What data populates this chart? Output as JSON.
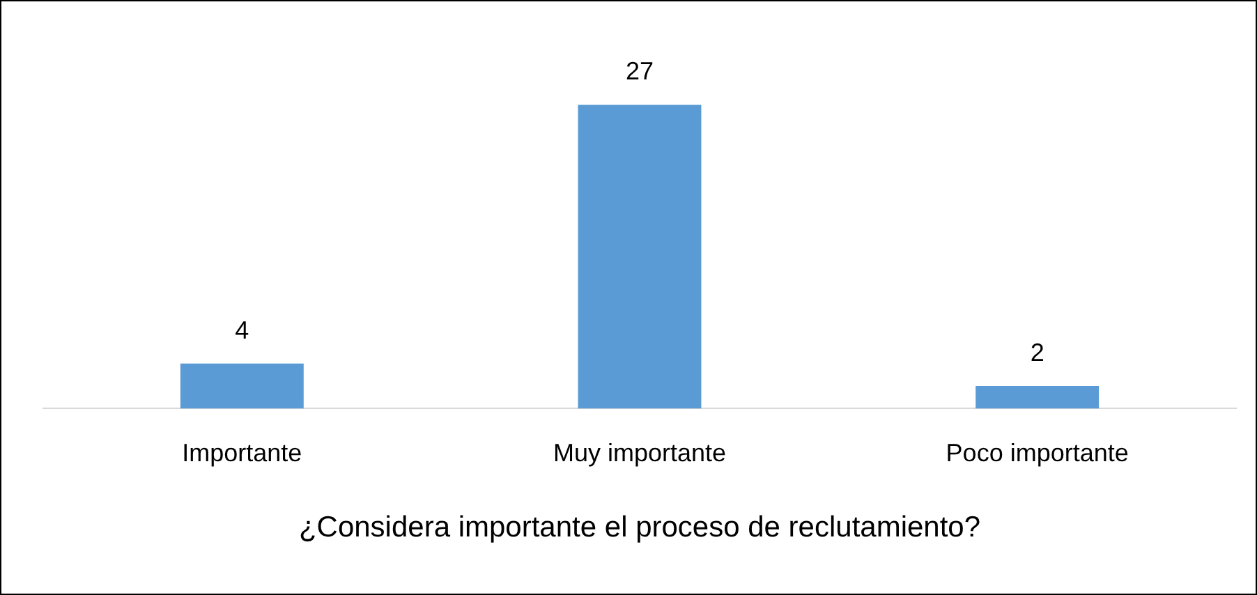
{
  "chart_data": {
    "type": "bar",
    "xlabel": "¿Considera importante el proceso de reclutamiento?",
    "categories": [
      "Importante",
      "Muy importante",
      "Poco importante"
    ],
    "values": [
      4,
      27,
      2
    ],
    "color": "#5b9bd5",
    "data_labels": true,
    "grid": false,
    "legend": false
  }
}
